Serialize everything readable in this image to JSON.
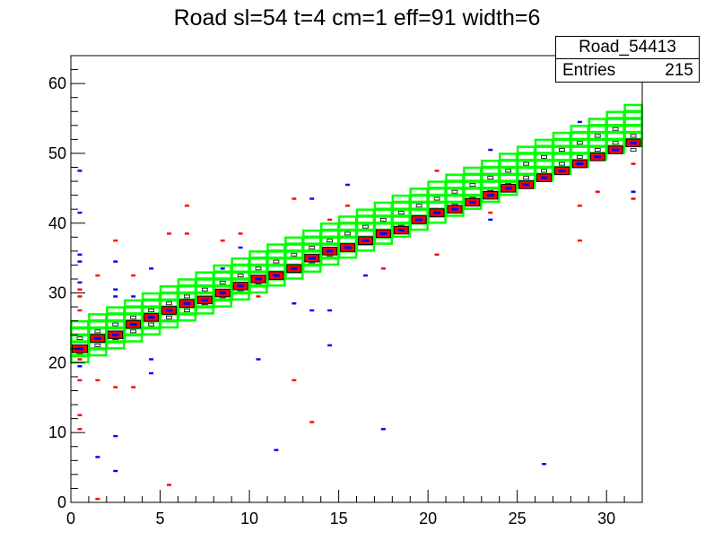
{
  "chart_data": {
    "type": "heatmap",
    "title": "Road sl=54 t=4 cm=1 eff=91 width=6",
    "stats_box": {
      "name": "Road_54413",
      "entries_label": "Entries",
      "entries_value": "215"
    },
    "xlim": [
      0,
      32
    ],
    "ylim": [
      0,
      64
    ],
    "x_ticks": [
      0,
      5,
      10,
      15,
      20,
      25,
      30
    ],
    "y_ticks": [
      0,
      10,
      20,
      30,
      40,
      50,
      60
    ],
    "colors": {
      "red": "#ff0000",
      "blue": "#0000ff",
      "road": "#00ff00",
      "axis": "#000000"
    },
    "road_boxes": [
      {
        "x": 0,
        "y_center": 22.5
      },
      {
        "x": 1,
        "y_center": 23.5
      },
      {
        "x": 2,
        "y_center": 24.5
      },
      {
        "x": 3,
        "y_center": 25.5
      },
      {
        "x": 4,
        "y_center": 26.5
      },
      {
        "x": 5,
        "y_center": 27.5
      },
      {
        "x": 6,
        "y_center": 28.5
      },
      {
        "x": 7,
        "y_center": 29.5
      },
      {
        "x": 8,
        "y_center": 30.5
      },
      {
        "x": 9,
        "y_center": 31.5
      },
      {
        "x": 10,
        "y_center": 32.5
      },
      {
        "x": 11,
        "y_center": 33.5
      },
      {
        "x": 12,
        "y_center": 34.5
      },
      {
        "x": 13,
        "y_center": 35.5
      },
      {
        "x": 14,
        "y_center": 36.5
      },
      {
        "x": 15,
        "y_center": 37.5
      },
      {
        "x": 16,
        "y_center": 38.5
      },
      {
        "x": 17,
        "y_center": 39.5
      },
      {
        "x": 18,
        "y_center": 40.5
      },
      {
        "x": 19,
        "y_center": 41.5
      },
      {
        "x": 20,
        "y_center": 42.5
      },
      {
        "x": 21,
        "y_center": 43.5
      },
      {
        "x": 22,
        "y_center": 44.5
      },
      {
        "x": 23,
        "y_center": 45.5
      },
      {
        "x": 24,
        "y_center": 46.5
      },
      {
        "x": 25,
        "y_center": 47.5
      },
      {
        "x": 26,
        "y_center": 48.5
      },
      {
        "x": 27,
        "y_center": 49.5
      },
      {
        "x": 28,
        "y_center": 50.5
      },
      {
        "x": 29,
        "y_center": 51.5
      },
      {
        "x": 30,
        "y_center": 52.5
      },
      {
        "x": 31,
        "y_center": 53.5
      }
    ],
    "road_half_width": 3,
    "core_boxes": [
      {
        "x": 0,
        "y": 22,
        "w": 0.85
      },
      {
        "x": 1,
        "y": 23.5,
        "w": 0.8
      },
      {
        "x": 2,
        "y": 24,
        "w": 0.8
      },
      {
        "x": 3,
        "y": 25.5,
        "w": 0.8
      },
      {
        "x": 4,
        "y": 26.5,
        "w": 0.8
      },
      {
        "x": 5,
        "y": 27.5,
        "w": 0.8
      },
      {
        "x": 6,
        "y": 28.5,
        "w": 0.8
      },
      {
        "x": 7,
        "y": 29,
        "w": 0.8
      },
      {
        "x": 8,
        "y": 30,
        "w": 0.8
      },
      {
        "x": 9,
        "y": 31,
        "w": 0.8
      },
      {
        "x": 10,
        "y": 32,
        "w": 0.8
      },
      {
        "x": 11,
        "y": 32.5,
        "w": 0.8
      },
      {
        "x": 12,
        "y": 33.5,
        "w": 0.8
      },
      {
        "x": 13,
        "y": 35,
        "w": 0.8
      },
      {
        "x": 14,
        "y": 36,
        "w": 0.8
      },
      {
        "x": 15,
        "y": 36.5,
        "w": 0.8
      },
      {
        "x": 16,
        "y": 37.5,
        "w": 0.8
      },
      {
        "x": 17,
        "y": 38.5,
        "w": 0.8
      },
      {
        "x": 18,
        "y": 39,
        "w": 0.8
      },
      {
        "x": 19,
        "y": 40.5,
        "w": 0.8
      },
      {
        "x": 20,
        "y": 41.5,
        "w": 0.8
      },
      {
        "x": 21,
        "y": 42,
        "w": 0.8
      },
      {
        "x": 22,
        "y": 43,
        "w": 0.8
      },
      {
        "x": 23,
        "y": 44,
        "w": 0.8
      },
      {
        "x": 24,
        "y": 45,
        "w": 0.8
      },
      {
        "x": 25,
        "y": 45.5,
        "w": 0.8
      },
      {
        "x": 26,
        "y": 46.5,
        "w": 0.8
      },
      {
        "x": 27,
        "y": 47.5,
        "w": 0.8
      },
      {
        "x": 28,
        "y": 48.5,
        "w": 0.8
      },
      {
        "x": 29,
        "y": 49.5,
        "w": 0.8
      },
      {
        "x": 30,
        "y": 50.5,
        "w": 0.8
      },
      {
        "x": 31,
        "y": 51.5,
        "w": 0.8
      }
    ],
    "red_points": [
      {
        "x": 0,
        "y": 30.5
      },
      {
        "x": 0,
        "y": 29.5
      },
      {
        "x": 0,
        "y": 27.5
      },
      {
        "x": 0,
        "y": 20.5
      },
      {
        "x": 0,
        "y": 17.5
      },
      {
        "x": 0,
        "y": 12.5
      },
      {
        "x": 0,
        "y": 10.5
      },
      {
        "x": 1,
        "y": 32.5
      },
      {
        "x": 1,
        "y": 17.5
      },
      {
        "x": 1,
        "y": 0.5
      },
      {
        "x": 2,
        "y": 37.5
      },
      {
        "x": 2,
        "y": 16.5
      },
      {
        "x": 3,
        "y": 32.5
      },
      {
        "x": 3,
        "y": 16.5
      },
      {
        "x": 5,
        "y": 38.5
      },
      {
        "x": 5,
        "y": 2.5
      },
      {
        "x": 6,
        "y": 42.5
      },
      {
        "x": 6,
        "y": 38.5
      },
      {
        "x": 8,
        "y": 37.5
      },
      {
        "x": 9,
        "y": 38.5
      },
      {
        "x": 10,
        "y": 29.5
      },
      {
        "x": 12,
        "y": 43.5
      },
      {
        "x": 12,
        "y": 17.5
      },
      {
        "x": 13,
        "y": 11.5
      },
      {
        "x": 14,
        "y": 40.5
      },
      {
        "x": 15,
        "y": 42.5
      },
      {
        "x": 16,
        "y": 39.5
      },
      {
        "x": 17,
        "y": 33.5
      },
      {
        "x": 20,
        "y": 47.5
      },
      {
        "x": 20,
        "y": 35.5
      },
      {
        "x": 23,
        "y": 41.5
      },
      {
        "x": 28,
        "y": 42.5
      },
      {
        "x": 28,
        "y": 37.5
      },
      {
        "x": 29,
        "y": 44.5
      },
      {
        "x": 31,
        "y": 43.5
      },
      {
        "x": 31,
        "y": 48.5
      }
    ],
    "blue_points": [
      {
        "x": 0,
        "y": 47.5
      },
      {
        "x": 0,
        "y": 41.5
      },
      {
        "x": 0,
        "y": 35.5
      },
      {
        "x": 0,
        "y": 34.5
      },
      {
        "x": 0,
        "y": 31.5
      },
      {
        "x": 0,
        "y": 19.5
      },
      {
        "x": 1,
        "y": 6.5
      },
      {
        "x": 2,
        "y": 34.5
      },
      {
        "x": 2,
        "y": 30.5
      },
      {
        "x": 2,
        "y": 29.5
      },
      {
        "x": 2,
        "y": 9.5
      },
      {
        "x": 2,
        "y": 4.5
      },
      {
        "x": 3,
        "y": 29.5
      },
      {
        "x": 4,
        "y": 20.5
      },
      {
        "x": 4,
        "y": 18.5
      },
      {
        "x": 4,
        "y": 33.5
      },
      {
        "x": 8,
        "y": 33.5
      },
      {
        "x": 9,
        "y": 36.5
      },
      {
        "x": 10,
        "y": 20.5
      },
      {
        "x": 11,
        "y": 7.5
      },
      {
        "x": 12,
        "y": 28.5
      },
      {
        "x": 13,
        "y": 43.5
      },
      {
        "x": 13,
        "y": 27.5
      },
      {
        "x": 14,
        "y": 27.5
      },
      {
        "x": 14,
        "y": 22.5
      },
      {
        "x": 15,
        "y": 45.5
      },
      {
        "x": 16,
        "y": 32.5
      },
      {
        "x": 17,
        "y": 10.5
      },
      {
        "x": 23,
        "y": 50.5
      },
      {
        "x": 23,
        "y": 40.5
      },
      {
        "x": 26,
        "y": 5.5
      },
      {
        "x": 28,
        "y": 54.5
      },
      {
        "x": 31,
        "y": 44.5
      }
    ],
    "small_markers": [
      {
        "x": 0,
        "y": 23.5
      },
      {
        "x": 0,
        "y": 21.5
      },
      {
        "x": 1,
        "y": 24.5
      },
      {
        "x": 1,
        "y": 22.5
      },
      {
        "x": 2,
        "y": 25.5
      },
      {
        "x": 2,
        "y": 23.5
      },
      {
        "x": 3,
        "y": 26.5
      },
      {
        "x": 3,
        "y": 24.5
      },
      {
        "x": 4,
        "y": 27.5
      },
      {
        "x": 4,
        "y": 25.5
      },
      {
        "x": 5,
        "y": 28.5
      },
      {
        "x": 5,
        "y": 26.5
      },
      {
        "x": 6,
        "y": 29.5
      },
      {
        "x": 6,
        "y": 27.5
      },
      {
        "x": 7,
        "y": 30.5
      },
      {
        "x": 7,
        "y": 28.5
      },
      {
        "x": 8,
        "y": 31.5
      },
      {
        "x": 8,
        "y": 29.5
      },
      {
        "x": 9,
        "y": 32.5
      },
      {
        "x": 9,
        "y": 30.5
      },
      {
        "x": 10,
        "y": 33.5
      },
      {
        "x": 10,
        "y": 31.5
      },
      {
        "x": 11,
        "y": 34.5
      },
      {
        "x": 11,
        "y": 32.5
      },
      {
        "x": 12,
        "y": 35.5
      },
      {
        "x": 12,
        "y": 33.5
      },
      {
        "x": 13,
        "y": 36.5
      },
      {
        "x": 13,
        "y": 34.5
      },
      {
        "x": 14,
        "y": 37.5
      },
      {
        "x": 14,
        "y": 35.5
      },
      {
        "x": 15,
        "y": 38.5
      },
      {
        "x": 15,
        "y": 36.5
      },
      {
        "x": 16,
        "y": 39.5
      },
      {
        "x": 16,
        "y": 37.5
      },
      {
        "x": 17,
        "y": 40.5
      },
      {
        "x": 17,
        "y": 38.5
      },
      {
        "x": 18,
        "y": 41.5
      },
      {
        "x": 18,
        "y": 39.5
      },
      {
        "x": 19,
        "y": 42.5
      },
      {
        "x": 19,
        "y": 40.5
      },
      {
        "x": 20,
        "y": 43.5
      },
      {
        "x": 20,
        "y": 41.5
      },
      {
        "x": 21,
        "y": 44.5
      },
      {
        "x": 21,
        "y": 42.5
      },
      {
        "x": 22,
        "y": 45.5
      },
      {
        "x": 22,
        "y": 43.5
      },
      {
        "x": 23,
        "y": 46.5
      },
      {
        "x": 23,
        "y": 44.5
      },
      {
        "x": 24,
        "y": 47.5
      },
      {
        "x": 24,
        "y": 45.5
      },
      {
        "x": 25,
        "y": 48.5
      },
      {
        "x": 25,
        "y": 46.5
      },
      {
        "x": 26,
        "y": 49.5
      },
      {
        "x": 26,
        "y": 47.5
      },
      {
        "x": 27,
        "y": 50.5
      },
      {
        "x": 27,
        "y": 48.5
      },
      {
        "x": 28,
        "y": 51.5
      },
      {
        "x": 28,
        "y": 49.5
      },
      {
        "x": 29,
        "y": 52.5
      },
      {
        "x": 29,
        "y": 50.5
      },
      {
        "x": 30,
        "y": 53.5
      },
      {
        "x": 30,
        "y": 51.5
      },
      {
        "x": 31,
        "y": 52.5
      },
      {
        "x": 31,
        "y": 50.5
      }
    ]
  }
}
